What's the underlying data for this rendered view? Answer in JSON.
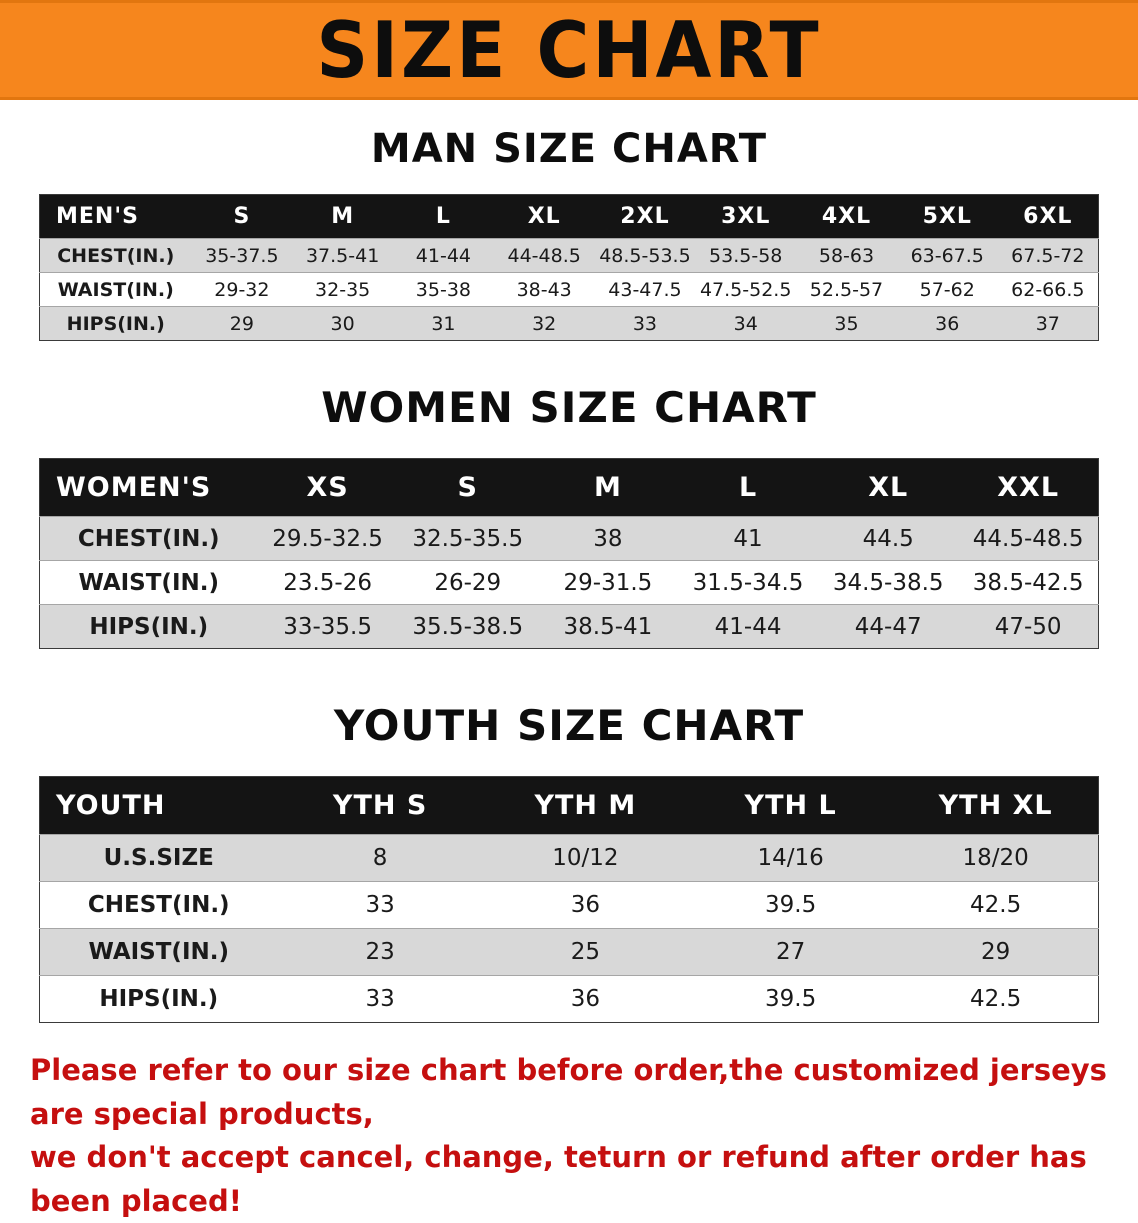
{
  "banner": {
    "title": "SIZE CHART",
    "bg_color": "#F6861D",
    "text_color": "#0d0d0d"
  },
  "sections": [
    {
      "heading": "MAN SIZE CHART",
      "table": {
        "header": [
          "MEN'S",
          "S",
          "M",
          "L",
          "XL",
          "2XL",
          "3XL",
          "4XL",
          "5XL",
          "6XL"
        ],
        "rows": [
          [
            "CHEST(IN.)",
            "35-37.5",
            "37.5-41",
            "41-44",
            "44-48.5",
            "48.5-53.5",
            "53.5-58",
            "58-63",
            "63-67.5",
            "67.5-72"
          ],
          [
            "WAIST(IN.)",
            "29-32",
            "32-35",
            "35-38",
            "38-43",
            "43-47.5",
            "47.5-52.5",
            "52.5-57",
            "57-62",
            "62-66.5"
          ],
          [
            "HIPS(IN.)",
            "29",
            "30",
            "31",
            "32",
            "33",
            "34",
            "35",
            "36",
            "37"
          ]
        ]
      }
    },
    {
      "heading": "WOMEN SIZE CHART",
      "table": {
        "header": [
          "WOMEN'S",
          "XS",
          "S",
          "M",
          "L",
          "XL",
          "XXL"
        ],
        "rows": [
          [
            "CHEST(IN.)",
            "29.5-32.5",
            "32.5-35.5",
            "38",
            "41",
            "44.5",
            "44.5-48.5"
          ],
          [
            "WAIST(IN.)",
            "23.5-26",
            "26-29",
            "29-31.5",
            "31.5-34.5",
            "34.5-38.5",
            "38.5-42.5"
          ],
          [
            "HIPS(IN.)",
            "33-35.5",
            "35.5-38.5",
            "38.5-41",
            "41-44",
            "44-47",
            "47-50"
          ]
        ]
      }
    },
    {
      "heading": "YOUTH SIZE CHART",
      "table": {
        "header": [
          "YOUTH",
          "YTH S",
          "YTH M",
          "YTH L",
          "YTH XL"
        ],
        "rows": [
          [
            "U.S.SIZE",
            "8",
            "10/12",
            "14/16",
            "18/20"
          ],
          [
            "CHEST(IN.)",
            "33",
            "36",
            "39.5",
            "42.5"
          ],
          [
            "WAIST(IN.)",
            "23",
            "25",
            "27",
            "29"
          ],
          [
            "HIPS(IN.)",
            "33",
            "36",
            "39.5",
            "42.5"
          ]
        ]
      }
    }
  ],
  "disclaimer": {
    "line1": "Please refer to our size chart before order,the customized jerseys are special products,",
    "line2": "we don't accept cancel, change, teturn or refund after order has been placed!",
    "color": "#C50F0F"
  }
}
